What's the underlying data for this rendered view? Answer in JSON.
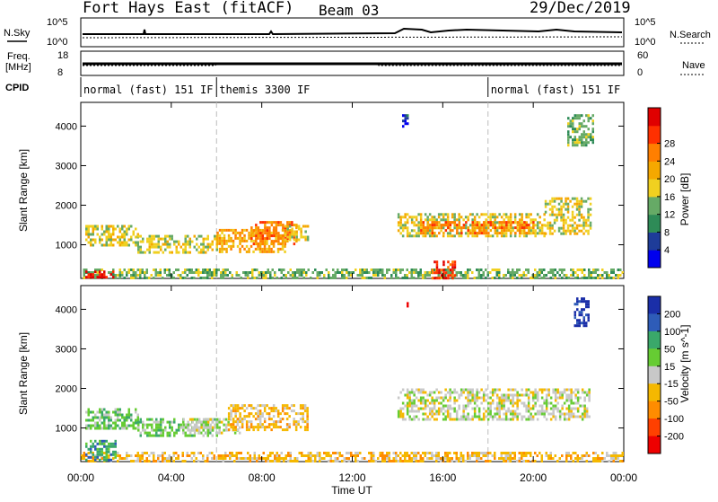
{
  "header": {
    "title": "Fort Hays East (fitACF)",
    "beam": "Beam 03",
    "date": "29/Dec/2019"
  },
  "top_panels": {
    "nsky": {
      "label": "N.Sky",
      "tick_top": "10^5",
      "tick_bottom": "10^0"
    },
    "nsearch": {
      "label": "N.Search",
      "tick_top": "10^5",
      "tick_bottom": "10^0"
    },
    "freq": {
      "label_line1": "Freq.",
      "label_line2": "[MHz]",
      "tick_top": "18",
      "tick_bottom": "8"
    },
    "nave": {
      "label": "Nave",
      "tick_top": "60",
      "tick_bottom": "0"
    },
    "cpid": {
      "label": "CPID",
      "segments": [
        {
          "start_hour": 0,
          "end_hour": 6,
          "text": "normal (fast) 151 IF"
        },
        {
          "start_hour": 6,
          "end_hour": 18,
          "text": "themis 3300 IF"
        },
        {
          "start_hour": 18,
          "end_hour": 24,
          "text": "normal (fast) 151 IF"
        }
      ]
    }
  },
  "colorbars": {
    "power": {
      "label": "Power [dB]",
      "ticks": [
        "4",
        "8",
        "12",
        "16",
        "20",
        "24",
        "28"
      ],
      "colors": [
        "#0000ee",
        "#1e3c99",
        "#2e8b57",
        "#66aa66",
        "#f0d020",
        "#f5a800",
        "#ff7f00",
        "#ff3000",
        "#e00000"
      ]
    },
    "velocity": {
      "label": "Velocity [m s^-1]",
      "ticks": [
        "200",
        "100",
        "50",
        "15",
        "-15",
        "-50",
        "-100",
        "-200"
      ],
      "colors": [
        "#1a2ea8",
        "#2e5cb8",
        "#3aa86a",
        "#66cc33",
        "#c8c8c8",
        "#f5b800",
        "#ff8c00",
        "#ff4000",
        "#ee0000"
      ]
    }
  },
  "chart_data": [
    {
      "type": "heatmap",
      "title": "Power",
      "ylabel": "Slant Range [km]",
      "xlabel": "",
      "ylim": [
        150,
        4600
      ],
      "xlim_hours": [
        0,
        24
      ],
      "yticks": [
        "1000",
        "2000",
        "3000",
        "4000"
      ],
      "xticks": [
        "00:00",
        "04:00",
        "08:00",
        "12:00",
        "16:00",
        "20:00",
        "00:00"
      ],
      "colorbar": "power",
      "regions": [
        {
          "t0": 0.2,
          "t1": 2.5,
          "r0": 1000,
          "r1": 1500,
          "level": 4
        },
        {
          "t0": 2.5,
          "t1": 6.0,
          "r0": 800,
          "r1": 1250,
          "level": 4
        },
        {
          "t0": 6.0,
          "t1": 9.0,
          "r0": 850,
          "r1": 1400,
          "level": 5
        },
        {
          "t0": 7.5,
          "t1": 9.5,
          "r0": 1000,
          "r1": 1600,
          "level": 6
        },
        {
          "t0": 9.0,
          "t1": 10.0,
          "r0": 1100,
          "r1": 1500,
          "level": 4
        },
        {
          "t0": 14.0,
          "t1": 20.5,
          "r0": 1200,
          "r1": 1800,
          "level": 4
        },
        {
          "t0": 15.0,
          "t1": 20.0,
          "r0": 1300,
          "r1": 1600,
          "level": 6
        },
        {
          "t0": 20.5,
          "t1": 22.5,
          "r0": 1250,
          "r1": 2200,
          "level": 4
        },
        {
          "t0": 0.0,
          "t1": 24.0,
          "r0": 180,
          "r1": 400,
          "level": 3
        },
        {
          "t0": 0.2,
          "t1": 1.5,
          "r0": 180,
          "r1": 350,
          "level": 8
        },
        {
          "t0": 15.5,
          "t1": 16.5,
          "r0": 180,
          "r1": 600,
          "level": 7
        },
        {
          "t0": 14.2,
          "t1": 14.4,
          "r0": 4000,
          "r1": 4300,
          "level": 1
        },
        {
          "t0": 21.5,
          "t1": 22.6,
          "r0": 3500,
          "r1": 4300,
          "level": 3
        }
      ]
    },
    {
      "type": "heatmap",
      "title": "Velocity",
      "ylabel": "Slant Range [km]",
      "xlabel": "Time UT",
      "ylim": [
        150,
        4600
      ],
      "xlim_hours": [
        0,
        24
      ],
      "yticks": [
        "1000",
        "2000",
        "3000",
        "4000"
      ],
      "xticks": [
        "00:00",
        "04:00",
        "08:00",
        "12:00",
        "16:00",
        "20:00",
        "00:00"
      ],
      "colorbar": "velocity",
      "regions": [
        {
          "t0": 0.2,
          "t1": 2.5,
          "r0": 1000,
          "r1": 1500,
          "level": 3
        },
        {
          "t0": 2.5,
          "t1": 6.0,
          "r0": 800,
          "r1": 1250,
          "level": 3
        },
        {
          "t0": 4.5,
          "t1": 7.0,
          "r0": 850,
          "r1": 1250,
          "level": 4
        },
        {
          "t0": 6.5,
          "t1": 10.0,
          "r0": 950,
          "r1": 1600,
          "level": 5
        },
        {
          "t0": 14.0,
          "t1": 22.5,
          "r0": 1200,
          "r1": 2000,
          "level": 4
        },
        {
          "t0": 0.0,
          "t1": 24.0,
          "r0": 180,
          "r1": 400,
          "level": 5
        },
        {
          "t0": 0.2,
          "t1": 1.5,
          "r0": 180,
          "r1": 700,
          "level": 2
        },
        {
          "t0": 14.3,
          "t1": 14.4,
          "r0": 4050,
          "r1": 4250,
          "level": 8
        },
        {
          "t0": 21.8,
          "t1": 22.4,
          "r0": 3500,
          "r1": 4300,
          "level": 0
        }
      ]
    }
  ]
}
